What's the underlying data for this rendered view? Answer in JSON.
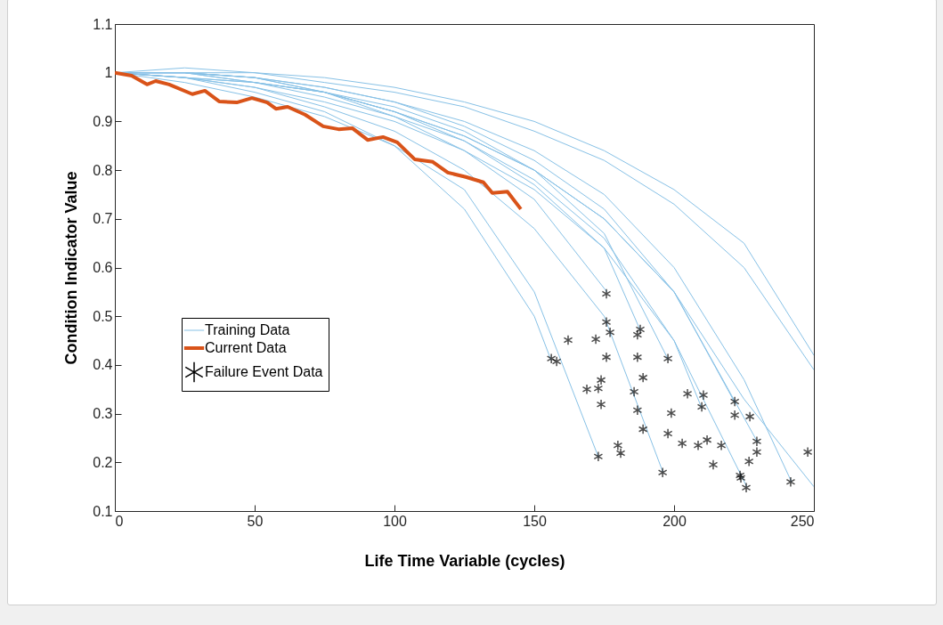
{
  "chart_data": {
    "type": "line",
    "xlabel": "Life Time Variable (cycles)",
    "ylabel": "Condition Indicator Value",
    "xlim": [
      0,
      250
    ],
    "xticks": [
      0,
      50,
      100,
      150,
      200,
      250
    ],
    "ylim": [
      0.1,
      1.1
    ],
    "yticks": [
      0.1,
      0.2,
      0.3,
      0.4,
      0.5,
      0.6,
      0.7,
      0.8,
      0.9,
      1,
      1.1
    ],
    "grid": false,
    "legend": "left",
    "series": [
      {
        "name": "Training Data",
        "color": "#87c1e6",
        "x": [
          0,
          25,
          50,
          75,
          100,
          125,
          150,
          156
        ],
        "values": [
          1.0,
          0.99,
          0.96,
          0.92,
          0.85,
          0.72,
          0.5,
          0.41
        ]
      },
      {
        "color": "#87c1e6",
        "x": [
          0,
          25,
          50,
          75,
          100,
          125,
          150,
          173
        ],
        "values": [
          1.0,
          0.98,
          0.95,
          0.91,
          0.85,
          0.76,
          0.55,
          0.21
        ]
      },
      {
        "color": "#87c1e6",
        "x": [
          0,
          25,
          50,
          75,
          100,
          125,
          150,
          176
        ],
        "values": [
          1.0,
          1.0,
          0.99,
          0.96,
          0.91,
          0.84,
          0.74,
          0.55
        ]
      },
      {
        "color": "#87c1e6",
        "x": [
          0,
          25,
          50,
          75,
          100,
          125,
          150,
          175,
          188
        ],
        "values": [
          1.0,
          1.0,
          0.98,
          0.96,
          0.92,
          0.86,
          0.77,
          0.64,
          0.47
        ]
      },
      {
        "color": "#87c1e6",
        "x": [
          0,
          25,
          50,
          75,
          100,
          125,
          150,
          175,
          196
        ],
        "values": [
          1.0,
          0.99,
          0.97,
          0.93,
          0.88,
          0.8,
          0.68,
          0.5,
          0.18
        ]
      },
      {
        "color": "#87c1e6",
        "x": [
          0,
          25,
          50,
          75,
          100,
          125,
          150,
          175,
          198
        ],
        "values": [
          1.0,
          1.0,
          0.99,
          0.96,
          0.92,
          0.87,
          0.8,
          0.67,
          0.41
        ]
      },
      {
        "color": "#87c1e6",
        "x": [
          0,
          25,
          50,
          75,
          100,
          125,
          150,
          175,
          200,
          210
        ],
        "values": [
          1.0,
          0.99,
          0.98,
          0.95,
          0.91,
          0.86,
          0.78,
          0.66,
          0.45,
          0.31
        ]
      },
      {
        "color": "#87c1e6",
        "x": [
          0,
          25,
          50,
          75,
          100,
          125,
          150,
          175,
          200,
          222
        ],
        "values": [
          1.0,
          1.0,
          0.99,
          0.97,
          0.94,
          0.89,
          0.82,
          0.72,
          0.55,
          0.32
        ]
      },
      {
        "color": "#87c1e6",
        "x": [
          0,
          25,
          50,
          75,
          100,
          125,
          150,
          175,
          200,
          226
        ],
        "values": [
          1.0,
          0.99,
          0.97,
          0.94,
          0.9,
          0.84,
          0.76,
          0.64,
          0.45,
          0.15
        ]
      },
      {
        "color": "#87c1e6",
        "x": [
          0,
          25,
          50,
          75,
          100,
          125,
          150,
          175,
          200,
          230
        ],
        "values": [
          1.0,
          1.0,
          0.98,
          0.96,
          0.92,
          0.87,
          0.8,
          0.7,
          0.55,
          0.24
        ]
      },
      {
        "color": "#87c1e6",
        "x": [
          0,
          25,
          50,
          75,
          100,
          125,
          150,
          175,
          200,
          225,
          242
        ],
        "values": [
          1.0,
          1.0,
          0.99,
          0.97,
          0.94,
          0.9,
          0.84,
          0.75,
          0.6,
          0.37,
          0.16
        ]
      },
      {
        "color": "#87c1e6",
        "x": [
          0,
          25,
          50,
          75,
          100,
          125,
          150,
          175,
          200,
          225,
          250
        ],
        "values": [
          1.0,
          1.0,
          1.0,
          0.98,
          0.96,
          0.93,
          0.88,
          0.82,
          0.73,
          0.6,
          0.39
        ]
      },
      {
        "color": "#87c1e6",
        "x": [
          0,
          25,
          50,
          75,
          100,
          125,
          150,
          175,
          200,
          225,
          250
        ],
        "values": [
          1.0,
          1.01,
          1.0,
          0.99,
          0.97,
          0.94,
          0.9,
          0.84,
          0.76,
          0.65,
          0.42
        ]
      },
      {
        "color": "#87c1e6",
        "x": [
          0,
          25,
          50,
          75,
          100,
          125,
          150,
          175,
          200,
          225,
          250
        ],
        "values": [
          1.0,
          0.99,
          0.98,
          0.96,
          0.93,
          0.88,
          0.8,
          0.7,
          0.55,
          0.33,
          0.15
        ]
      },
      {
        "name": "Current Data",
        "color": "#d95319",
        "x": [
          0,
          6,
          11.5,
          14.6,
          19.4,
          27.7,
          32.2,
          37.3,
          43.6,
          49,
          54.5,
          57.6,
          61.8,
          68,
          74.5,
          80,
          85,
          90.4,
          95.9,
          101,
          107.3,
          113.7,
          119.1,
          125.5,
          131.8,
          135,
          140.4,
          145.2
        ],
        "values": [
          1.0,
          0.994,
          0.976,
          0.983,
          0.976,
          0.956,
          0.963,
          0.941,
          0.939,
          0.948,
          0.939,
          0.926,
          0.93,
          0.914,
          0.89,
          0.884,
          0.886,
          0.862,
          0.868,
          0.857,
          0.822,
          0.817,
          0.795,
          0.786,
          0.775,
          0.753,
          0.756,
          0.72
        ]
      },
      {
        "name": "Failure Event Data",
        "type": "scatter",
        "marker": "cross",
        "color": "#000000",
        "x": [
          175.8,
          175.8,
          177.1,
          187.9,
          186.9,
          162.1,
          172,
          156.1,
          158,
          175.8,
          186.9,
          197.8,
          188.9,
          173.9,
          168.8,
          172.9,
          185.7,
          173.9,
          204.8,
          210.5,
          209.9,
          221.7,
          221.7,
          227.1,
          186.9,
          199,
          188.9,
          197.8,
          202.9,
          208.6,
          211.8,
          216.9,
          179.9,
          180.9,
          172.9,
          229.6,
          229.6,
          226.8,
          214,
          195.9,
          223.6,
          223.9,
          225.8,
          241.7,
          247.8
        ],
        "values": [
          0.546,
          0.488,
          0.467,
          0.473,
          0.462,
          0.451,
          0.453,
          0.413,
          0.407,
          0.416,
          0.416,
          0.413,
          0.374,
          0.369,
          0.35,
          0.352,
          0.345,
          0.319,
          0.341,
          0.338,
          0.314,
          0.325,
          0.297,
          0.294,
          0.307,
          0.301,
          0.268,
          0.259,
          0.239,
          0.235,
          0.246,
          0.235,
          0.235,
          0.219,
          0.212,
          0.243,
          0.221,
          0.202,
          0.195,
          0.179,
          0.173,
          0.168,
          0.148,
          0.16,
          0.221
        ]
      }
    ]
  }
}
